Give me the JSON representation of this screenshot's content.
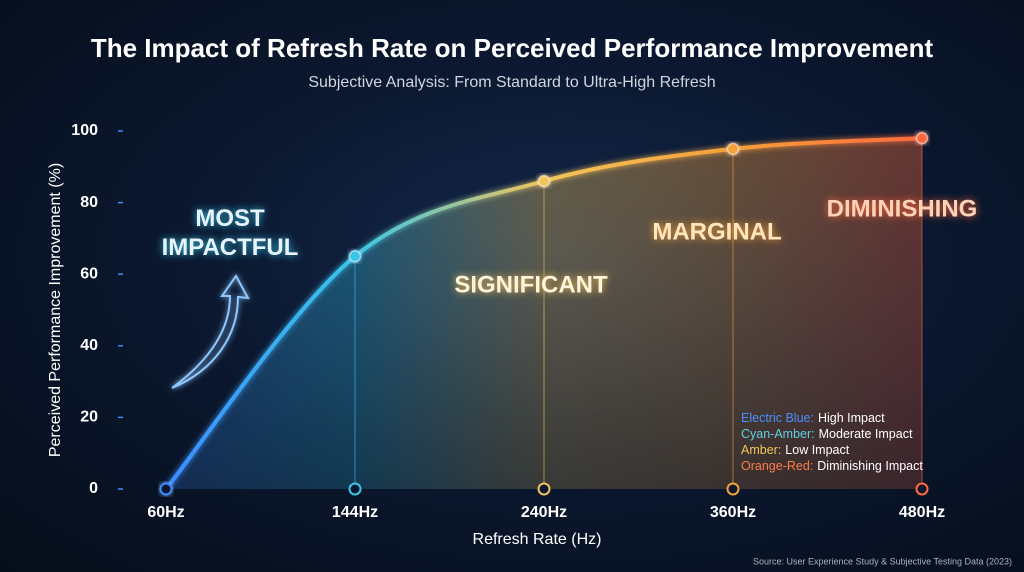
{
  "chart_data": {
    "type": "area",
    "title": "The Impact of Refresh Rate on Perceived Performance Improvement",
    "subtitle": "Subjective Analysis: From Standard to Ultra-High Refresh",
    "x_label": "Refresh Rate (Hz)",
    "y_label": "Perceived Performance Improvement (%)",
    "categories": [
      "60Hz",
      "144Hz",
      "240Hz",
      "360Hz",
      "480Hz"
    ],
    "values": [
      0,
      65,
      86,
      95,
      98
    ],
    "point_colors": [
      "#3b8cff",
      "#39c6e8",
      "#f2c45a",
      "#f5a03a",
      "#ff6a3d"
    ],
    "ylim": [
      0,
      100
    ],
    "yticks": [
      0,
      20,
      40,
      60,
      80,
      100
    ],
    "annotations": [
      {
        "text": "MOST IMPACTFUL",
        "color": "#e8f4ff"
      },
      {
        "text": "SIGNIFICANT",
        "color": "#fff3dc"
      },
      {
        "text": "MARGINAL",
        "color": "#ffe6c0"
      },
      {
        "text": "DIMINISHING",
        "color": "#ffd2b8"
      }
    ],
    "legend": [
      {
        "name": "Electric Blue:",
        "description": "High Impact",
        "color": "#4a8fff"
      },
      {
        "name": "Cyan-Amber:",
        "description": "Moderate Impact",
        "color": "#5fd0e0"
      },
      {
        "name": "Amber:",
        "description": "Low Impact",
        "color": "#f2c45a"
      },
      {
        "name": "Orange-Red:",
        "description": "Diminishing Impact",
        "color": "#ff7a4a"
      }
    ],
    "source": "Source: User Experience Study & Subjective Testing Data (2023)"
  }
}
